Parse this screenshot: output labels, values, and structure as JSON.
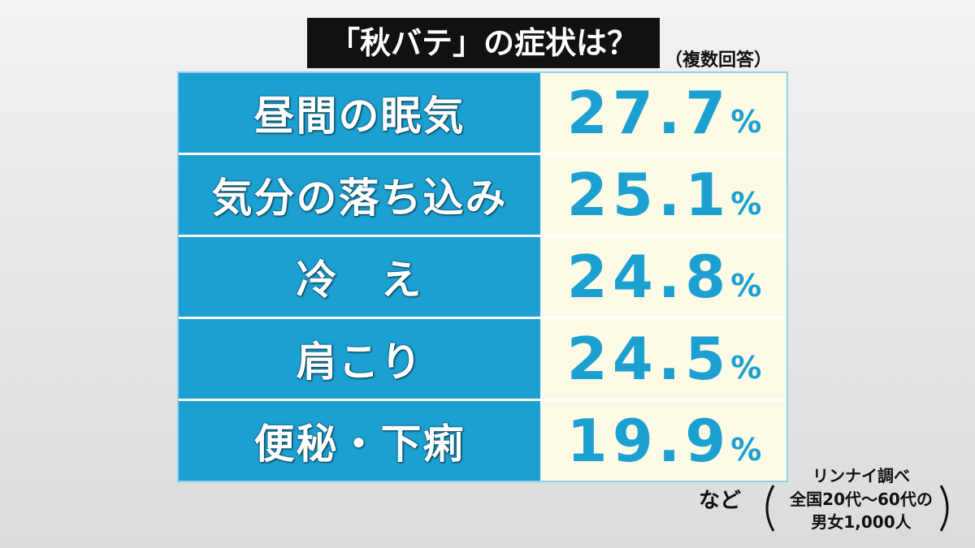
{
  "header": {
    "title": "「秋バテ」の症状は？",
    "note": "（複数回答）"
  },
  "table": {
    "rows": [
      {
        "label": "昼間の眠気",
        "value": "27.7",
        "unit": "%"
      },
      {
        "label": "気分の落ち込み",
        "value": "25.1",
        "unit": "%"
      },
      {
        "label": "冷　え",
        "value": "24.8",
        "unit": "%"
      },
      {
        "label": "肩こり",
        "value": "24.5",
        "unit": "%"
      },
      {
        "label": "便秘・下痢",
        "value": "19.9",
        "unit": "%"
      }
    ]
  },
  "footer": {
    "etc": "など",
    "source": "リンナイ調べ",
    "survey_line1": "全国20代～60代の",
    "survey_line2": "男女1,000人"
  }
}
